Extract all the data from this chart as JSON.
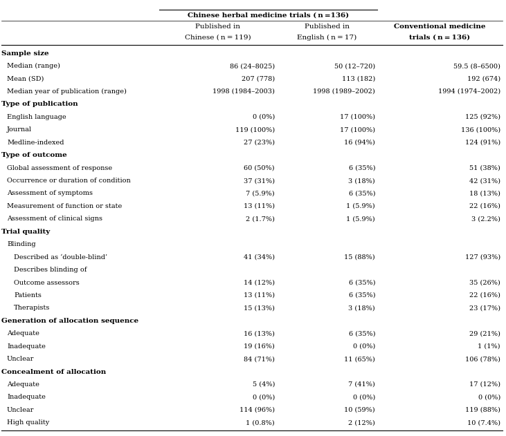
{
  "title_main": "Chinese herbal medicine trials ( n =136)",
  "col_headers": [
    [
      "Published in",
      "Chinese ( n = 119)"
    ],
    [
      "Published in",
      "English ( n = 17)"
    ],
    [
      "Conventional medicine",
      "trials ( n = 136)"
    ]
  ],
  "rows": [
    {
      "label": "Sample size",
      "level": 0,
      "bold": true,
      "values": [
        "",
        "",
        ""
      ]
    },
    {
      "label": "Median (range)",
      "level": 1,
      "bold": false,
      "values": [
        "86 (24–8025)",
        "50 (12–720)",
        "59.5 (8–6500)"
      ]
    },
    {
      "label": "Mean (SD)",
      "level": 1,
      "bold": false,
      "values": [
        "207 (778)",
        "113 (182)",
        "192 (674)"
      ]
    },
    {
      "label": "Median year of publication (range)",
      "level": 1,
      "bold": false,
      "values": [
        "1998 (1984–2003)",
        "1998 (1989–2002)",
        "1994 (1974–2002)"
      ]
    },
    {
      "label": "Type of publication",
      "level": 0,
      "bold": true,
      "values": [
        "",
        "",
        ""
      ]
    },
    {
      "label": "English language",
      "level": 1,
      "bold": false,
      "values": [
        "0 (0%)",
        "17 (100%)",
        "125 (92%)"
      ]
    },
    {
      "label": "Journal",
      "level": 1,
      "bold": false,
      "values": [
        "119 (100%)",
        "17 (100%)",
        "136 (100%)"
      ]
    },
    {
      "label": "Medline-indexed",
      "level": 1,
      "bold": false,
      "values": [
        "27 (23%)",
        "16 (94%)",
        "124 (91%)"
      ]
    },
    {
      "label": "Type of outcome",
      "level": 0,
      "bold": true,
      "values": [
        "",
        "",
        ""
      ]
    },
    {
      "label": "Global assessment of response",
      "level": 1,
      "bold": false,
      "values": [
        "60 (50%)",
        "6 (35%)",
        "51 (38%)"
      ]
    },
    {
      "label": "Occurrence or duration of condition",
      "level": 1,
      "bold": false,
      "values": [
        "37 (31%)",
        "3 (18%)",
        "42 (31%)"
      ]
    },
    {
      "label": "Assessment of symptoms",
      "level": 1,
      "bold": false,
      "values": [
        "7 (5.9%)",
        "6 (35%)",
        "18 (13%)"
      ]
    },
    {
      "label": "Measurement of function or state",
      "level": 1,
      "bold": false,
      "values": [
        "13 (11%)",
        "1 (5.9%)",
        "22 (16%)"
      ]
    },
    {
      "label": "Assessment of clinical signs",
      "level": 1,
      "bold": false,
      "values": [
        "2 (1.7%)",
        "1 (5.9%)",
        "3 (2.2%)"
      ]
    },
    {
      "label": "Trial quality",
      "level": 0,
      "bold": true,
      "values": [
        "",
        "",
        ""
      ]
    },
    {
      "label": "Blinding",
      "level": 1,
      "bold": false,
      "values": [
        "",
        "",
        ""
      ]
    },
    {
      "label": "Described as ‘double-blind’",
      "level": 2,
      "bold": false,
      "values": [
        "41 (34%)",
        "15 (88%)",
        "127 (93%)"
      ]
    },
    {
      "label": "Describes blinding of",
      "level": 2,
      "bold": false,
      "values": [
        "",
        "",
        ""
      ]
    },
    {
      "label": "Outcome assessors",
      "level": 2,
      "bold": false,
      "values": [
        "14 (12%)",
        "6 (35%)",
        "35 (26%)"
      ]
    },
    {
      "label": "Patients",
      "level": 2,
      "bold": false,
      "values": [
        "13 (11%)",
        "6 (35%)",
        "22 (16%)"
      ]
    },
    {
      "label": "Therapists",
      "level": 2,
      "bold": false,
      "values": [
        "15 (13%)",
        "3 (18%)",
        "23 (17%)"
      ]
    },
    {
      "label": "Generation of allocation sequence",
      "level": 0,
      "bold": true,
      "values": [
        "",
        "",
        ""
      ]
    },
    {
      "label": "Adequate",
      "level": 1,
      "bold": false,
      "values": [
        "16 (13%)",
        "6 (35%)",
        "29 (21%)"
      ]
    },
    {
      "label": "Inadequate",
      "level": 1,
      "bold": false,
      "values": [
        "19 (16%)",
        "0 (0%)",
        "1 (1%)"
      ]
    },
    {
      "label": "Unclear",
      "level": 1,
      "bold": false,
      "values": [
        "84 (71%)",
        "11 (65%)",
        "106 (78%)"
      ]
    },
    {
      "label": "Concealment of allocation",
      "level": 0,
      "bold": true,
      "values": [
        "",
        "",
        ""
      ]
    },
    {
      "label": "Adequate",
      "level": 1,
      "bold": false,
      "values": [
        "5 (4%)",
        "7 (41%)",
        "17 (12%)"
      ]
    },
    {
      "label": "Inadequate",
      "level": 1,
      "bold": false,
      "values": [
        "0 (0%)",
        "0 (0%)",
        "0 (0%)"
      ]
    },
    {
      "label": "Unclear",
      "level": 1,
      "bold": false,
      "values": [
        "114 (96%)",
        "10 (59%)",
        "119 (88%)"
      ]
    },
    {
      "label": "High quality",
      "level": 1,
      "bold": false,
      "values": [
        "1 (0.8%)",
        "2 (12%)",
        "10 (7.4%)"
      ]
    }
  ],
  "figsize": [
    7.31,
    6.31
  ],
  "dpi": 100,
  "fontsize_data": 7.0,
  "fontsize_bold": 7.5,
  "fontsize_header": 7.5,
  "bg_color": "#ffffff",
  "line_color": "#000000"
}
